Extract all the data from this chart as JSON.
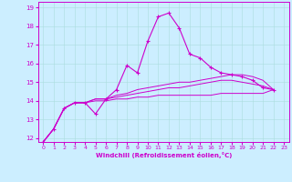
{
  "title": "",
  "xlabel": "Windchill (Refroidissement éolien,°C)",
  "ylabel": "",
  "background_color": "#cceeff",
  "line_color": "#cc00cc",
  "xlim": [
    -0.5,
    23.5
  ],
  "ylim": [
    11.8,
    19.3
  ],
  "yticks": [
    12,
    13,
    14,
    15,
    16,
    17,
    18,
    19
  ],
  "xticks": [
    0,
    1,
    2,
    3,
    4,
    5,
    6,
    7,
    8,
    9,
    10,
    11,
    12,
    13,
    14,
    15,
    16,
    17,
    18,
    19,
    20,
    21,
    22,
    23
  ],
  "curves": [
    [
      11.8,
      12.5,
      13.6,
      13.9,
      13.9,
      13.3,
      14.1,
      14.6,
      15.9,
      15.5,
      17.2,
      18.5,
      18.7,
      17.9,
      16.5,
      16.3,
      15.8,
      15.5,
      15.4,
      15.3,
      15.1,
      14.7,
      14.6
    ],
    [
      11.8,
      12.5,
      13.6,
      13.9,
      13.9,
      14.1,
      14.1,
      14.3,
      14.4,
      14.6,
      14.7,
      14.8,
      14.9,
      15.0,
      15.0,
      15.1,
      15.2,
      15.3,
      15.4,
      15.4,
      15.3,
      15.1,
      14.6
    ],
    [
      11.8,
      12.5,
      13.6,
      13.9,
      13.9,
      14.1,
      14.1,
      14.2,
      14.3,
      14.4,
      14.5,
      14.6,
      14.7,
      14.7,
      14.8,
      14.9,
      15.0,
      15.1,
      15.1,
      15.0,
      14.9,
      14.8,
      14.6
    ],
    [
      11.8,
      12.5,
      13.6,
      13.9,
      13.9,
      14.0,
      14.0,
      14.1,
      14.1,
      14.2,
      14.2,
      14.3,
      14.3,
      14.3,
      14.3,
      14.3,
      14.3,
      14.4,
      14.4,
      14.4,
      14.4,
      14.4,
      14.6
    ]
  ],
  "has_markers": [
    true,
    false,
    false,
    false
  ],
  "figsize": [
    3.2,
    2.0
  ],
  "dpi": 100
}
